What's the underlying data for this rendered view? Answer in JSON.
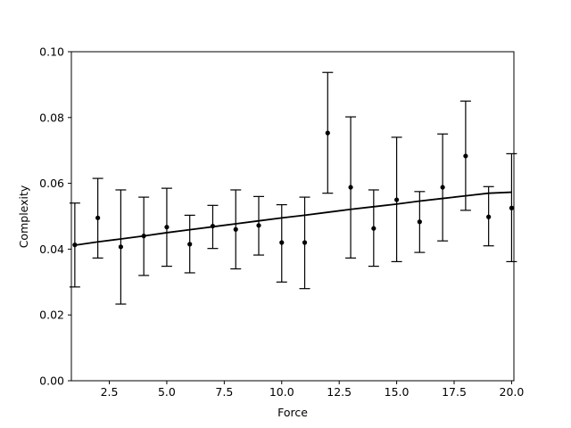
{
  "chart_data": {
    "type": "scatter",
    "title": "",
    "xlabel": "Force",
    "ylabel": "Complexity",
    "xlim": [
      0.85,
      20.1
    ],
    "ylim": [
      0.0,
      0.1
    ],
    "x_ticks": [
      2.5,
      5.0,
      7.5,
      10.0,
      12.5,
      15.0,
      17.5,
      20.0
    ],
    "x_tick_labels": [
      "2.5",
      "5.0",
      "7.5",
      "10.0",
      "12.5",
      "15.0",
      "17.5",
      "20.0"
    ],
    "y_ticks": [
      0.0,
      0.02,
      0.04,
      0.06,
      0.08,
      0.1
    ],
    "y_tick_labels": [
      "0.00",
      "0.02",
      "0.04",
      "0.06",
      "0.08",
      "0.10"
    ],
    "grid": false,
    "legend": "none",
    "colors": {
      "points": "#000000",
      "errorbars": "#000000",
      "fit_line": "#000000"
    },
    "series": [
      {
        "kind": "points_with_errorbars",
        "points": [
          {
            "x": 1,
            "y": 0.0413,
            "lo": 0.0285,
            "hi": 0.054
          },
          {
            "x": 2,
            "y": 0.0495,
            "lo": 0.0373,
            "hi": 0.0615
          },
          {
            "x": 3,
            "y": 0.0407,
            "lo": 0.0233,
            "hi": 0.058
          },
          {
            "x": 4,
            "y": 0.044,
            "lo": 0.032,
            "hi": 0.0558
          },
          {
            "x": 5,
            "y": 0.0467,
            "lo": 0.0348,
            "hi": 0.0585
          },
          {
            "x": 6,
            "y": 0.0415,
            "lo": 0.0328,
            "hi": 0.0503
          },
          {
            "x": 7,
            "y": 0.047,
            "lo": 0.0402,
            "hi": 0.0533
          },
          {
            "x": 8,
            "y": 0.046,
            "lo": 0.034,
            "hi": 0.058
          },
          {
            "x": 9,
            "y": 0.0472,
            "lo": 0.0382,
            "hi": 0.056
          },
          {
            "x": 10,
            "y": 0.042,
            "lo": 0.03,
            "hi": 0.0535
          },
          {
            "x": 11,
            "y": 0.042,
            "lo": 0.028,
            "hi": 0.0558
          },
          {
            "x": 12,
            "y": 0.0753,
            "lo": 0.057,
            "hi": 0.0937
          },
          {
            "x": 13,
            "y": 0.0588,
            "lo": 0.0373,
            "hi": 0.0802
          },
          {
            "x": 14,
            "y": 0.0463,
            "lo": 0.0348,
            "hi": 0.058
          },
          {
            "x": 15,
            "y": 0.055,
            "lo": 0.0362,
            "hi": 0.074
          },
          {
            "x": 16,
            "y": 0.0483,
            "lo": 0.039,
            "hi": 0.0575
          },
          {
            "x": 17,
            "y": 0.0588,
            "lo": 0.0425,
            "hi": 0.075
          },
          {
            "x": 18,
            "y": 0.0683,
            "lo": 0.0518,
            "hi": 0.085
          },
          {
            "x": 19,
            "y": 0.0498,
            "lo": 0.041,
            "hi": 0.059
          },
          {
            "x": 20,
            "y": 0.0525,
            "lo": 0.0362,
            "hi": 0.069
          }
        ]
      },
      {
        "kind": "fit_line",
        "x": [
          1,
          2,
          3,
          4,
          5,
          6,
          7,
          8,
          9,
          10,
          11,
          12,
          13,
          14,
          15,
          16,
          17,
          18,
          19,
          20
        ],
        "y": [
          0.0412,
          0.0422,
          0.0431,
          0.044,
          0.045,
          0.0459,
          0.0468,
          0.0477,
          0.0486,
          0.0495,
          0.0503,
          0.0512,
          0.0521,
          0.0529,
          0.0537,
          0.0546,
          0.0554,
          0.0562,
          0.057,
          0.0573
        ]
      }
    ]
  }
}
